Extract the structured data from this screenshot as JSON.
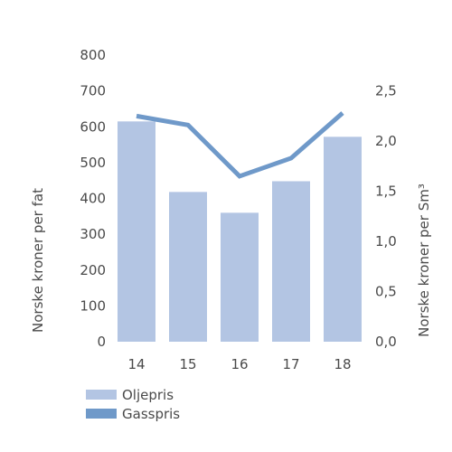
{
  "chart_data": {
    "type": "bar",
    "categories": [
      "14",
      "15",
      "16",
      "17",
      "18"
    ],
    "series": [
      {
        "name": "Oljepris",
        "type": "bar",
        "axis": "left",
        "color": "#b3c5e3",
        "values": [
          615,
          418,
          360,
          448,
          572
        ]
      },
      {
        "name": "Gasspris",
        "type": "line",
        "axis": "right",
        "color": "#6f99c9",
        "values": [
          2.25,
          2.16,
          1.65,
          1.83,
          2.28
        ]
      }
    ],
    "y_left": {
      "label": "Norske kroner per fat",
      "range": [
        0,
        800
      ],
      "ticks": [
        "0",
        "100",
        "200",
        "300",
        "400",
        "500",
        "600",
        "700",
        "800"
      ]
    },
    "y_right": {
      "label": "Norske kroner per Sm³",
      "range": [
        0,
        2.857
      ],
      "ticks": [
        "0,0",
        "0,5",
        "1,0",
        "1,5",
        "2,0",
        "2,5"
      ]
    },
    "grid": false,
    "legend": "bottom-left"
  }
}
